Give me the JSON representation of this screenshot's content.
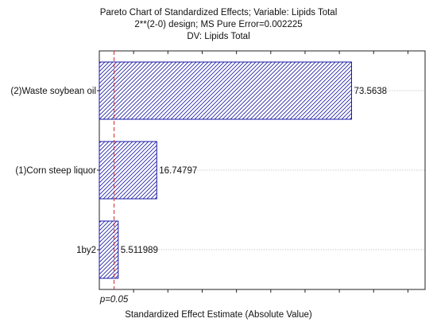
{
  "chart_data": {
    "type": "bar",
    "orientation": "horizontal",
    "title": "Pareto Chart of Standardized Effects; Variable: Lipids Total",
    "subtitle": "2**(2-0) design; MS Pure Error=0.002225",
    "subtitle2": "DV: Lipids Total",
    "xlabel": "Standardized Effect Estimate (Absolute Value)",
    "categories": [
      "(2)Waste soybean oil",
      "(1)Corn steep liquor",
      "1by2"
    ],
    "values": [
      73.5638,
      16.74797,
      5.511989
    ],
    "value_labels": [
      "73.5638",
      "16.74797",
      "5.511989"
    ],
    "significance_line": {
      "value": 4.303,
      "label": "p=0.05"
    },
    "xlim": [
      0,
      95
    ],
    "bar_fill": "diagonal-hatch",
    "colors": {
      "bar_stroke": "#1a1aa6",
      "hatch": "#1a1aa6",
      "reference_line": "#d12a2a",
      "grid": "#9a9a9a"
    }
  }
}
